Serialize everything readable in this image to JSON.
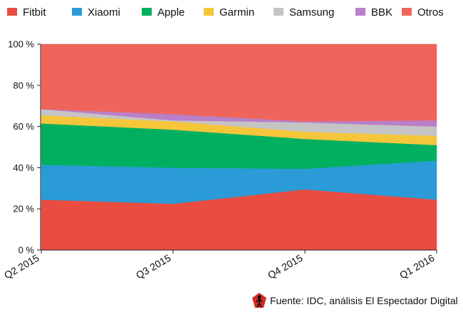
{
  "chart_data": {
    "type": "area",
    "stacked": true,
    "categories": [
      "Q2 2015",
      "Q3 2015",
      "Q4 2015",
      "Q1 2016"
    ],
    "series": [
      {
        "name": "Fitbit",
        "color": "#e94c41",
        "values": [
          24.5,
          22.5,
          29.5,
          24.5
        ]
      },
      {
        "name": "Xiaomi",
        "color": "#2b9bd8",
        "values": [
          17.0,
          17.5,
          10.0,
          19.0
        ]
      },
      {
        "name": "Apple",
        "color": "#00b060",
        "values": [
          20.0,
          18.5,
          14.5,
          7.5
        ]
      },
      {
        "name": "Garmin",
        "color": "#f5c63a",
        "values": [
          4.0,
          4.0,
          3.5,
          4.5
        ]
      },
      {
        "name": "Samsung",
        "color": "#c4c4c4",
        "values": [
          3.0,
          0.5,
          4.5,
          4.5
        ]
      },
      {
        "name": "BBK",
        "color": "#b97fc8",
        "values": [
          0.0,
          3.0,
          0.5,
          3.0
        ]
      },
      {
        "name": "Otros",
        "color": "#ef655c",
        "values": [
          31.5,
          34.0,
          37.5,
          37.0
        ]
      }
    ],
    "y_ticks": [
      "0 %",
      "20 %",
      "40 %",
      "60 %",
      "80 %",
      "100 %"
    ],
    "ylim": [
      0,
      100
    ],
    "legend_position": "top",
    "grid": false
  },
  "source": {
    "text": "Fuente: IDC, análisis El Espectador Digital",
    "icon": "espectador-logo-icon"
  }
}
